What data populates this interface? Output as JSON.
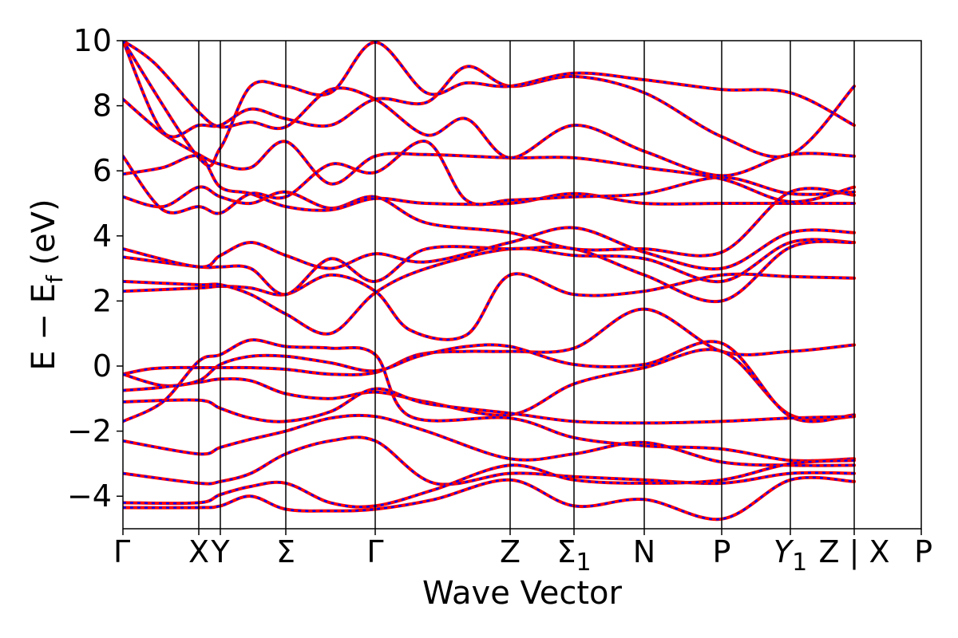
{
  "chart_data": {
    "type": "line",
    "title": "",
    "xlabel": "Wave Vector",
    "ylabel": "E − Ef (eV)",
    "ylabel_main": "E − E",
    "ylabel_sub": "f",
    "ylabel_unit": " (eV)",
    "ylim": [
      -5,
      10
    ],
    "yticks": [
      -4,
      -2,
      0,
      2,
      4,
      6,
      8,
      10
    ],
    "ytick_labels": [
      "−4",
      "−2",
      "0",
      "2",
      "4",
      "6",
      "8",
      "10"
    ],
    "kpath_end": 10,
    "kpoints": [
      {
        "k": 0.0,
        "label": "Γ"
      },
      {
        "k": 0.95,
        "label": "X"
      },
      {
        "k": 1.22,
        "label": "Y"
      },
      {
        "k": 2.04,
        "label": "Σ"
      },
      {
        "k": 3.16,
        "label": "Γ"
      },
      {
        "k": 4.85,
        "label": "Z"
      },
      {
        "k": 5.65,
        "label": "Σ",
        "sub": "1"
      },
      {
        "k": 6.53,
        "label": "N"
      },
      {
        "k": 7.5,
        "label": "P"
      },
      {
        "k": 8.36,
        "label": "Y",
        "sub": "1",
        "italic": true
      },
      {
        "k": 9.16,
        "label": "Z | X"
      },
      {
        "k": 10.0,
        "label": "P"
      }
    ],
    "grid": false,
    "legend": "none",
    "series_colors": {
      "solid": "#ff0000",
      "dashed": "#0000ff"
    },
    "series": [
      {
        "points": [
          [
            0,
            -0.25
          ],
          [
            0.3,
            -0.1
          ],
          [
            0.6,
            -0.05
          ],
          [
            0.95,
            -0.05
          ],
          [
            1.22,
            -0.05
          ],
          [
            1.6,
            -0.05
          ],
          [
            2.04,
            -0.1
          ],
          [
            2.6,
            -0.25
          ],
          [
            3.16,
            -0.2
          ],
          [
            3.7,
            0.35
          ],
          [
            4.3,
            0.45
          ],
          [
            4.85,
            0.45
          ],
          [
            5.65,
            0.55
          ],
          [
            6.53,
            1.75
          ],
          [
            7.5,
            0.45
          ],
          [
            8.36,
            0.45
          ],
          [
            9.16,
            0.65
          ]
        ]
      },
      {
        "points": [
          [
            0,
            -0.25
          ],
          [
            0.5,
            -0.6
          ],
          [
            0.95,
            -0.5
          ],
          [
            1.22,
            -0.4
          ],
          [
            1.6,
            -0.45
          ],
          [
            2.04,
            -0.85
          ],
          [
            2.6,
            -1.0
          ],
          [
            3.16,
            -0.8
          ],
          [
            3.8,
            -1.1
          ],
          [
            4.85,
            -1.5
          ],
          [
            5.65,
            -0.55
          ],
          [
            6.53,
            -0.05
          ],
          [
            7.5,
            0.45
          ],
          [
            8.36,
            -1.5
          ],
          [
            9.16,
            -1.55
          ]
        ]
      },
      {
        "points": [
          [
            0,
            -0.75
          ],
          [
            0.5,
            -0.65
          ],
          [
            0.95,
            -0.45
          ],
          [
            1.22,
            0.05
          ],
          [
            1.6,
            0.3
          ],
          [
            2.04,
            0.3
          ],
          [
            2.6,
            0.1
          ],
          [
            3.16,
            -0.15
          ],
          [
            3.7,
            0.3
          ],
          [
            4.3,
            0.6
          ],
          [
            4.85,
            0.6
          ],
          [
            5.65,
            0.05
          ],
          [
            6.53,
            0.05
          ],
          [
            7.5,
            0.7
          ],
          [
            8.36,
            -1.55
          ],
          [
            9.16,
            -1.5
          ]
        ]
      },
      {
        "points": [
          [
            0,
            -1.1
          ],
          [
            0.95,
            -1.05
          ],
          [
            1.22,
            -1.3
          ],
          [
            1.6,
            -1.6
          ],
          [
            2.04,
            -1.7
          ],
          [
            2.6,
            -1.4
          ],
          [
            3.16,
            -0.7
          ],
          [
            3.8,
            -1.15
          ],
          [
            4.85,
            -1.45
          ],
          [
            5.65,
            -1.7
          ],
          [
            6.53,
            -1.75
          ],
          [
            7.5,
            -1.7
          ],
          [
            8.36,
            -1.6
          ],
          [
            9.16,
            -1.55
          ]
        ]
      },
      {
        "points": [
          [
            0,
            -1.7
          ],
          [
            0.5,
            -1.1
          ],
          [
            0.95,
            0.15
          ],
          [
            1.22,
            0.35
          ],
          [
            1.6,
            0.8
          ],
          [
            2.04,
            0.6
          ],
          [
            2.6,
            0.55
          ],
          [
            3.16,
            0.35
          ],
          [
            3.6,
            -1.55
          ],
          [
            4.85,
            -1.6
          ],
          [
            5.65,
            -2.2
          ],
          [
            6.53,
            -2.45
          ],
          [
            7.5,
            -2.55
          ],
          [
            8.36,
            -2.9
          ],
          [
            9.16,
            -2.85
          ]
        ]
      },
      {
        "points": [
          [
            0,
            -2.3
          ],
          [
            0.95,
            -2.7
          ],
          [
            1.22,
            -2.5
          ],
          [
            1.6,
            -2.25
          ],
          [
            2.04,
            -2.0
          ],
          [
            2.6,
            -1.6
          ],
          [
            3.16,
            -1.55
          ],
          [
            3.8,
            -2.0
          ],
          [
            4.85,
            -2.85
          ],
          [
            5.65,
            -2.7
          ],
          [
            6.53,
            -2.35
          ],
          [
            7.5,
            -2.95
          ],
          [
            8.36,
            -3.05
          ],
          [
            9.16,
            -3.05
          ]
        ]
      },
      {
        "points": [
          [
            0,
            -3.3
          ],
          [
            0.95,
            -3.6
          ],
          [
            1.22,
            -3.55
          ],
          [
            1.6,
            -3.3
          ],
          [
            2.04,
            -2.7
          ],
          [
            2.6,
            -2.3
          ],
          [
            3.16,
            -2.3
          ],
          [
            3.9,
            -3.6
          ],
          [
            4.85,
            -3.3
          ],
          [
            5.65,
            -3.4
          ],
          [
            6.53,
            -3.5
          ],
          [
            7.5,
            -3.6
          ],
          [
            8.36,
            -3.3
          ],
          [
            9.16,
            -3.3
          ]
        ]
      },
      {
        "points": [
          [
            0,
            -4.2
          ],
          [
            0.95,
            -4.2
          ],
          [
            1.22,
            -3.95
          ],
          [
            1.6,
            -3.7
          ],
          [
            2.04,
            -3.6
          ],
          [
            2.6,
            -4.2
          ],
          [
            3.16,
            -4.3
          ],
          [
            3.9,
            -3.8
          ],
          [
            4.85,
            -3.05
          ],
          [
            5.65,
            -3.5
          ],
          [
            6.53,
            -3.6
          ],
          [
            7.5,
            -3.5
          ],
          [
            8.36,
            -3.0
          ],
          [
            9.16,
            -2.9
          ]
        ]
      },
      {
        "points": [
          [
            0,
            -4.35
          ],
          [
            0.95,
            -4.35
          ],
          [
            1.22,
            -4.3
          ],
          [
            1.6,
            -4.0
          ],
          [
            2.04,
            -4.4
          ],
          [
            2.6,
            -4.45
          ],
          [
            3.16,
            -4.4
          ],
          [
            3.9,
            -4.1
          ],
          [
            4.85,
            -3.5
          ],
          [
            5.65,
            -4.3
          ],
          [
            6.53,
            -4.1
          ],
          [
            7.5,
            -4.7
          ],
          [
            8.36,
            -3.5
          ],
          [
            9.16,
            -3.55
          ]
        ]
      },
      {
        "points": [
          [
            0,
            2.3
          ],
          [
            0.95,
            2.4
          ],
          [
            1.22,
            2.45
          ],
          [
            1.6,
            2.4
          ],
          [
            2.04,
            2.2
          ],
          [
            2.6,
            2.8
          ],
          [
            3.16,
            2.3
          ],
          [
            3.6,
            1.1
          ],
          [
            4.3,
            0.95
          ],
          [
            4.85,
            2.8
          ],
          [
            5.65,
            2.2
          ],
          [
            6.53,
            2.3
          ],
          [
            7.5,
            2.8
          ],
          [
            8.36,
            2.75
          ],
          [
            9.16,
            2.7
          ]
        ]
      },
      {
        "points": [
          [
            0,
            2.6
          ],
          [
            0.95,
            2.5
          ],
          [
            1.22,
            2.5
          ],
          [
            1.6,
            2.2
          ],
          [
            2.04,
            1.6
          ],
          [
            2.6,
            1.0
          ],
          [
            3.16,
            2.25
          ],
          [
            3.8,
            3.0
          ],
          [
            4.85,
            3.6
          ],
          [
            5.65,
            3.4
          ],
          [
            6.53,
            3.3
          ],
          [
            7.5,
            2.6
          ],
          [
            8.36,
            3.8
          ],
          [
            9.16,
            3.8
          ]
        ]
      },
      {
        "points": [
          [
            0,
            3.35
          ],
          [
            0.95,
            3.05
          ],
          [
            1.22,
            3.05
          ],
          [
            1.6,
            3.0
          ],
          [
            2.04,
            2.2
          ],
          [
            2.6,
            3.3
          ],
          [
            3.16,
            2.6
          ],
          [
            3.8,
            3.6
          ],
          [
            4.85,
            3.6
          ],
          [
            5.65,
            3.6
          ],
          [
            6.53,
            2.8
          ],
          [
            7.5,
            2.0
          ],
          [
            8.36,
            3.65
          ],
          [
            9.16,
            3.8
          ]
        ]
      },
      {
        "points": [
          [
            0,
            3.6
          ],
          [
            0.95,
            3.05
          ],
          [
            1.22,
            3.4
          ],
          [
            1.6,
            3.8
          ],
          [
            2.04,
            3.4
          ],
          [
            2.6,
            3.0
          ],
          [
            3.16,
            3.45
          ],
          [
            3.8,
            3.2
          ],
          [
            4.85,
            3.8
          ],
          [
            5.65,
            4.25
          ],
          [
            6.53,
            3.5
          ],
          [
            7.5,
            3.0
          ],
          [
            8.36,
            4.1
          ],
          [
            9.16,
            4.1
          ]
        ]
      },
      {
        "points": [
          [
            0,
            5.2
          ],
          [
            0.5,
            4.9
          ],
          [
            0.95,
            5.5
          ],
          [
            1.22,
            5.2
          ],
          [
            1.6,
            5.0
          ],
          [
            2.04,
            5.35
          ],
          [
            2.6,
            4.85
          ],
          [
            3.16,
            5.2
          ],
          [
            3.8,
            4.4
          ],
          [
            4.85,
            4.1
          ],
          [
            5.65,
            3.6
          ],
          [
            6.53,
            3.6
          ],
          [
            7.5,
            3.5
          ],
          [
            8.36,
            5.35
          ],
          [
            9.16,
            5.25
          ]
        ]
      },
      {
        "points": [
          [
            0,
            5.9
          ],
          [
            0.5,
            6.1
          ],
          [
            0.95,
            6.45
          ],
          [
            1.22,
            5.5
          ],
          [
            1.6,
            5.3
          ],
          [
            2.04,
            4.9
          ],
          [
            2.6,
            4.8
          ],
          [
            3.16,
            5.15
          ],
          [
            3.8,
            5.0
          ],
          [
            4.85,
            5.0
          ],
          [
            5.65,
            5.3
          ],
          [
            6.53,
            5.0
          ],
          [
            7.5,
            5.0
          ],
          [
            8.36,
            5.0
          ],
          [
            9.16,
            5.0
          ]
        ]
      },
      {
        "points": [
          [
            0,
            6.45
          ],
          [
            0.5,
            4.8
          ],
          [
            0.95,
            4.9
          ],
          [
            1.22,
            4.7
          ],
          [
            1.6,
            5.3
          ],
          [
            2.04,
            5.2
          ],
          [
            2.6,
            6.2
          ],
          [
            3.16,
            5.95
          ],
          [
            3.8,
            6.9
          ],
          [
            4.3,
            5.1
          ],
          [
            4.85,
            5.1
          ],
          [
            5.65,
            5.2
          ],
          [
            6.53,
            5.3
          ],
          [
            7.5,
            5.8
          ],
          [
            8.36,
            5.3
          ],
          [
            9.16,
            5.35
          ]
        ]
      },
      {
        "points": [
          [
            0,
            8.2
          ],
          [
            0.5,
            7.15
          ],
          [
            0.95,
            6.5
          ],
          [
            1.22,
            6.2
          ],
          [
            1.6,
            6.1
          ],
          [
            2.04,
            6.9
          ],
          [
            2.6,
            5.6
          ],
          [
            3.16,
            6.45
          ],
          [
            3.8,
            6.5
          ],
          [
            4.85,
            6.4
          ],
          [
            5.65,
            6.4
          ],
          [
            6.53,
            6.1
          ],
          [
            7.5,
            5.75
          ],
          [
            8.36,
            5.05
          ],
          [
            9.16,
            5.5
          ]
        ]
      },
      {
        "points": [
          [
            0,
            10.0
          ],
          [
            0.4,
            9.3
          ],
          [
            0.95,
            7.8
          ],
          [
            1.22,
            7.35
          ],
          [
            1.6,
            7.5
          ],
          [
            2.04,
            7.35
          ],
          [
            2.6,
            8.5
          ],
          [
            3.16,
            8.2
          ],
          [
            3.8,
            7.1
          ],
          [
            4.3,
            7.6
          ],
          [
            4.85,
            6.4
          ],
          [
            5.65,
            7.4
          ],
          [
            6.53,
            6.6
          ],
          [
            7.5,
            5.85
          ],
          [
            8.36,
            6.5
          ],
          [
            9.16,
            6.45
          ]
        ]
      },
      {
        "points": [
          [
            0,
            10.0
          ],
          [
            0.5,
            7.2
          ],
          [
            0.95,
            7.4
          ],
          [
            1.22,
            7.4
          ],
          [
            1.6,
            7.9
          ],
          [
            2.04,
            7.6
          ],
          [
            2.6,
            7.4
          ],
          [
            3.16,
            8.2
          ],
          [
            3.8,
            8.1
          ],
          [
            4.3,
            9.2
          ],
          [
            4.85,
            8.6
          ],
          [
            5.65,
            8.9
          ],
          [
            6.53,
            8.4
          ],
          [
            7.5,
            7.05
          ],
          [
            8.36,
            6.5
          ],
          [
            9.16,
            8.6
          ]
        ]
      },
      {
        "points": [
          [
            0,
            10.0
          ],
          [
            0.95,
            6.4
          ],
          [
            1.22,
            6.7
          ],
          [
            1.6,
            8.6
          ],
          [
            2.04,
            8.6
          ],
          [
            2.6,
            8.4
          ],
          [
            3.16,
            9.95
          ],
          [
            3.8,
            8.4
          ],
          [
            4.3,
            8.7
          ],
          [
            4.85,
            8.6
          ],
          [
            5.65,
            9.0
          ],
          [
            6.53,
            8.8
          ],
          [
            7.5,
            8.5
          ],
          [
            8.36,
            8.4
          ],
          [
            9.16,
            7.4
          ]
        ]
      }
    ]
  }
}
